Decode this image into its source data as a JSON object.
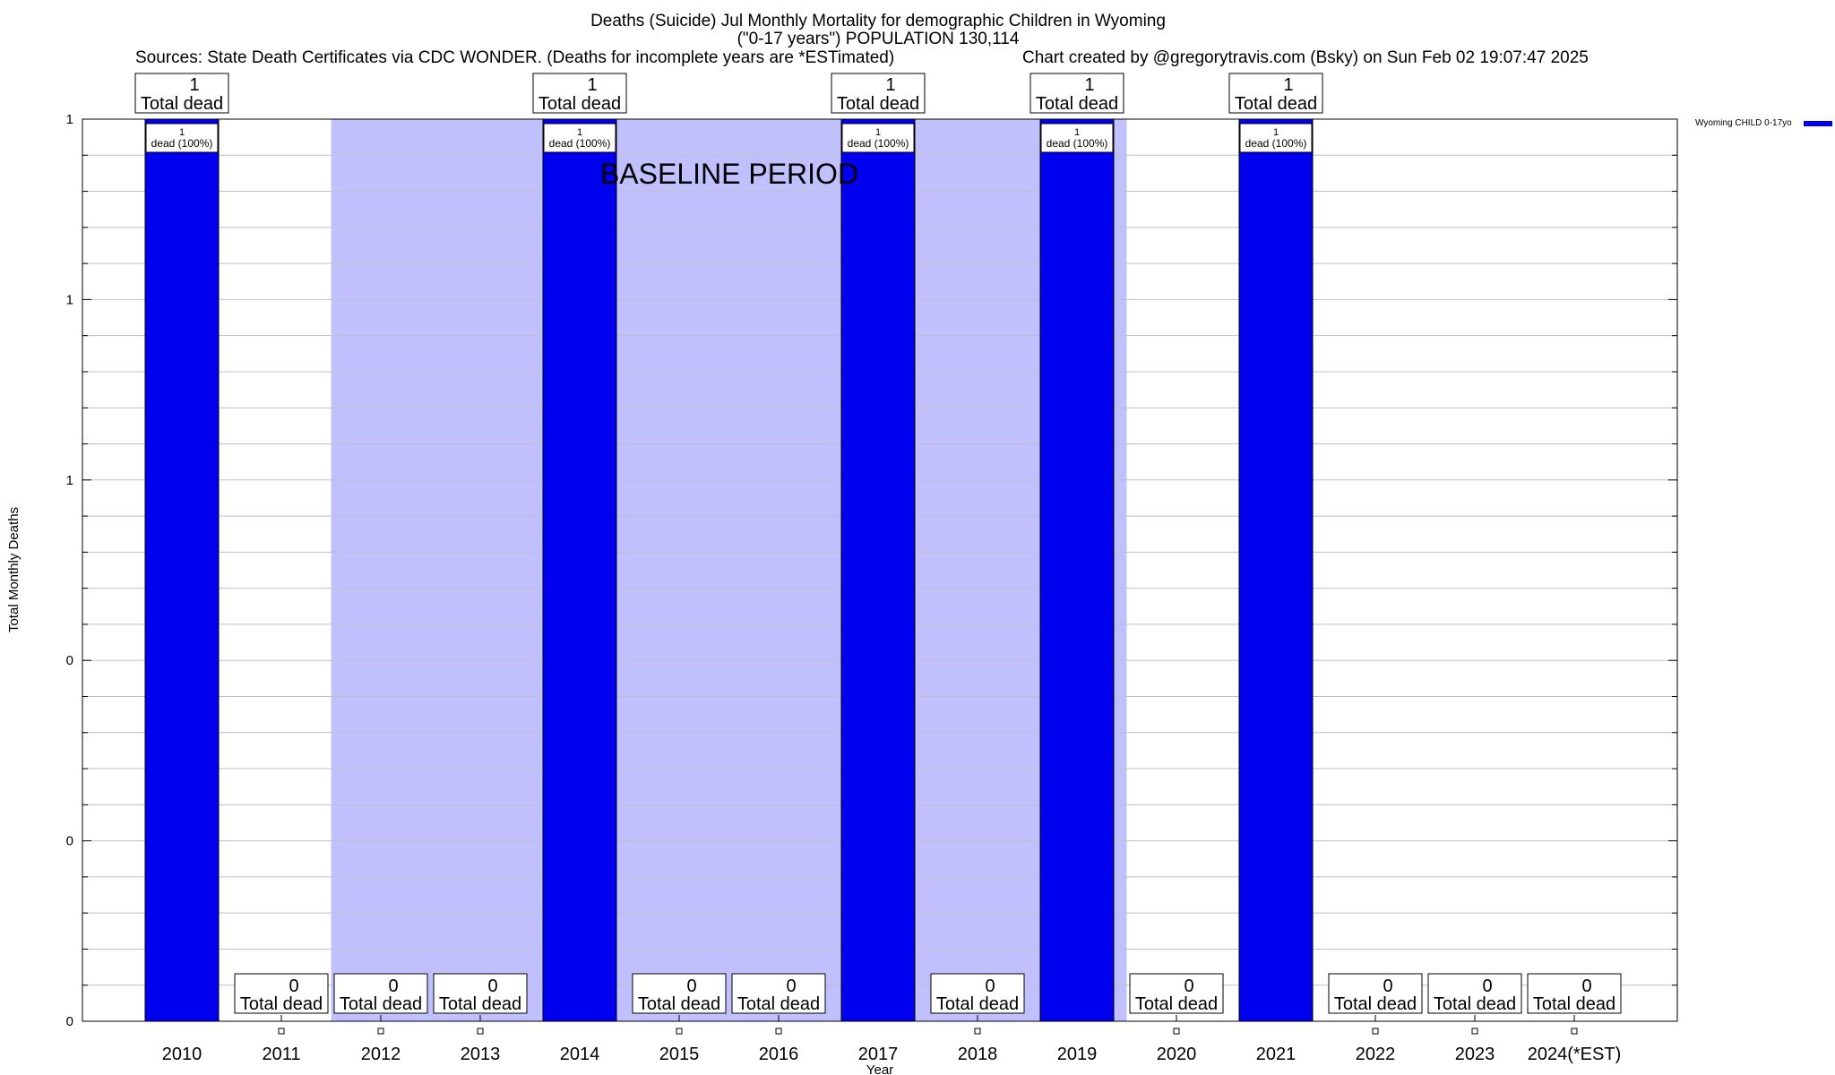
{
  "header": {
    "title_line1": "Deaths (Suicide) Jul Monthly Mortality for demographic Children in Wyoming",
    "title_line2": "(\"0-17 years\") POPULATION 130,114",
    "sources": "Sources: State Death Certificates via CDC WONDER. (Deaths for incomplete years are *ESTimated)",
    "credit": "Chart created by @gregorytravis.com (Bsky) on Sun Feb 02 19:07:47 2025"
  },
  "chart_data": {
    "type": "bar",
    "xlabel": "Year",
    "ylabel": "Total Monthly Deaths",
    "ylim": [
      0,
      1
    ],
    "ytick_labels": [
      "0",
      "0",
      "0",
      "1",
      "1",
      "1"
    ],
    "categories": [
      "2010",
      "2011",
      "2012",
      "2013",
      "2014",
      "2015",
      "2016",
      "2017",
      "2018",
      "2019",
      "2020",
      "2021",
      "2022",
      "2023",
      "2024(*EST)"
    ],
    "series": [
      {
        "name": "Wyoming CHILD 0-17yo",
        "color": "#0000ee",
        "values": [
          1,
          0,
          0,
          0,
          1,
          0,
          0,
          1,
          0,
          1,
          0,
          1,
          0,
          0,
          0
        ]
      }
    ],
    "total_label": "Total dead",
    "inner_label_line1": "1",
    "inner_label_line2": "dead (100%)",
    "baseline_period": {
      "label": "BASELINE PERIOD",
      "from": "2012",
      "to": "2019",
      "color": "#c0c0ff"
    },
    "grid": true,
    "legend_position": "top-right"
  }
}
